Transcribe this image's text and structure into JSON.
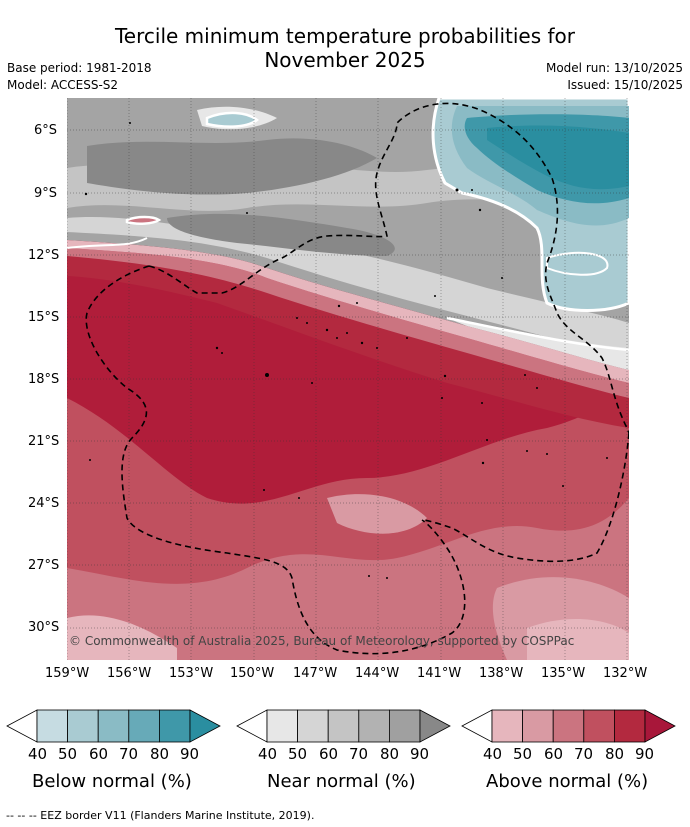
{
  "title": {
    "line1": "Tercile minimum temperature probabilities for",
    "line2": "November 2025"
  },
  "info": {
    "base_period": "Base period: 1981-2018",
    "model": "Model: ACCESS-S2",
    "model_run": "Model run: 13/10/2025",
    "issued": "Issued: 15/10/2025"
  },
  "map": {
    "lat_ticks": [
      "6°S",
      "9°S",
      "12°S",
      "15°S",
      "18°S",
      "21°S",
      "24°S",
      "27°S",
      "30°S"
    ],
    "lon_ticks": [
      "159°W",
      "156°W",
      "153°W",
      "150°W",
      "147°W",
      "144°W",
      "141°W",
      "138°W",
      "135°W",
      "132°W"
    ],
    "copyright": "© Commonwealth of Australia 2025, Bureau of Meteorology, supported by COSPPac"
  },
  "colors": {
    "below": [
      "#c6dce2",
      "#a9cbd2",
      "#8abbc5",
      "#67aab8",
      "#3f98a9",
      "#2a8ea0"
    ],
    "near": [
      "#e7e7e7",
      "#d5d5d5",
      "#c4c4c4",
      "#b2b2b2",
      "#a0a0a0",
      "#888888"
    ],
    "above": [
      "#e6b6bd",
      "#d99aa3",
      "#cb7480",
      "#c0505f",
      "#b3293f",
      "#a8173a"
    ]
  },
  "legend": {
    "values": [
      "40",
      "50",
      "60",
      "70",
      "80",
      "90"
    ],
    "below_title": "Below normal (%)",
    "near_title": "Near normal (%)",
    "above_title": "Above normal (%)"
  },
  "footnote": "--  --  -- EEZ border V11 (Flanders Marine Institute, 2019)."
}
